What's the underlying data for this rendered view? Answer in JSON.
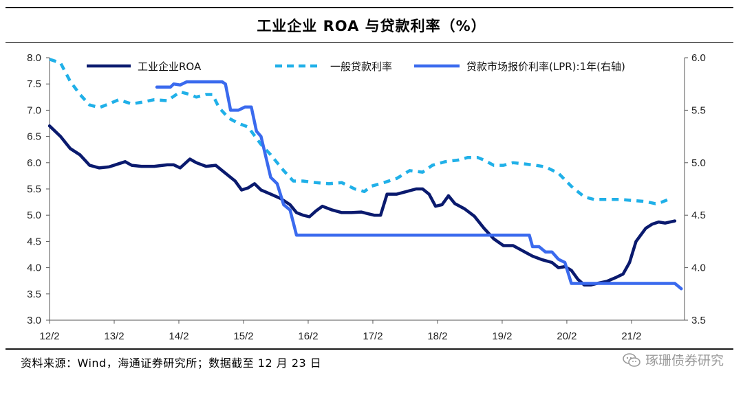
{
  "header": {
    "title": "工业企业 ROA 与贷款利率（%）"
  },
  "footer": {
    "source": "资料来源：Wind，海通证券研究所；数据截至 12 月 23 日",
    "watermark": "琢珊债券研究",
    "watermark_icon": "wechat-icon"
  },
  "chart_data": {
    "type": "line",
    "x_tick_labels": [
      "12/2",
      "13/2",
      "14/2",
      "15/2",
      "16/2",
      "17/2",
      "18/2",
      "19/2",
      "20/2",
      "21/2"
    ],
    "x_range": [
      2012.08,
      2021.9
    ],
    "left_axis": {
      "range": [
        3.0,
        8.0
      ],
      "ticks": [
        "3.0",
        "3.5",
        "4.0",
        "4.5",
        "5.0",
        "5.5",
        "6.0",
        "6.5",
        "7.0",
        "7.5",
        "8.0"
      ]
    },
    "right_axis": {
      "range": [
        3.5,
        6.0
      ],
      "ticks": [
        "3.5",
        "4.0",
        "4.5",
        "5.0",
        "5.5",
        "6.0"
      ]
    },
    "grid": false,
    "legend_position": "top",
    "series": [
      {
        "name": "工业企业ROA",
        "axis": "left",
        "color": "#0a1a6e",
        "style": "solid",
        "points": [
          [
            2012.08,
            6.7
          ],
          [
            2012.25,
            6.5
          ],
          [
            2012.4,
            6.27
          ],
          [
            2012.55,
            6.15
          ],
          [
            2012.7,
            5.95
          ],
          [
            2012.85,
            5.9
          ],
          [
            2013.0,
            5.92
          ],
          [
            2013.15,
            5.98
          ],
          [
            2013.25,
            6.02
          ],
          [
            2013.35,
            5.95
          ],
          [
            2013.5,
            5.93
          ],
          [
            2013.7,
            5.93
          ],
          [
            2013.9,
            5.96
          ],
          [
            2014.0,
            5.96
          ],
          [
            2014.1,
            5.9
          ],
          [
            2014.25,
            6.07
          ],
          [
            2014.35,
            6.0
          ],
          [
            2014.5,
            5.93
          ],
          [
            2014.65,
            5.95
          ],
          [
            2014.8,
            5.8
          ],
          [
            2014.95,
            5.65
          ],
          [
            2015.05,
            5.48
          ],
          [
            2015.15,
            5.52
          ],
          [
            2015.25,
            5.6
          ],
          [
            2015.35,
            5.48
          ],
          [
            2015.5,
            5.4
          ],
          [
            2015.65,
            5.32
          ],
          [
            2015.8,
            5.2
          ],
          [
            2015.9,
            5.05
          ],
          [
            2016.0,
            5.0
          ],
          [
            2016.1,
            4.97
          ],
          [
            2016.2,
            5.08
          ],
          [
            2016.3,
            5.17
          ],
          [
            2016.45,
            5.1
          ],
          [
            2016.6,
            5.05
          ],
          [
            2016.75,
            5.05
          ],
          [
            2016.9,
            5.06
          ],
          [
            2017.0,
            5.03
          ],
          [
            2017.1,
            5.0
          ],
          [
            2017.2,
            5.0
          ],
          [
            2017.3,
            5.4
          ],
          [
            2017.45,
            5.4
          ],
          [
            2017.6,
            5.45
          ],
          [
            2017.75,
            5.5
          ],
          [
            2017.85,
            5.5
          ],
          [
            2017.95,
            5.4
          ],
          [
            2018.05,
            5.17
          ],
          [
            2018.15,
            5.2
          ],
          [
            2018.25,
            5.37
          ],
          [
            2018.35,
            5.22
          ],
          [
            2018.5,
            5.12
          ],
          [
            2018.65,
            4.98
          ],
          [
            2018.8,
            4.75
          ],
          [
            2018.95,
            4.55
          ],
          [
            2019.1,
            4.42
          ],
          [
            2019.25,
            4.42
          ],
          [
            2019.4,
            4.32
          ],
          [
            2019.55,
            4.22
          ],
          [
            2019.7,
            4.15
          ],
          [
            2019.85,
            4.1
          ],
          [
            2019.95,
            4.0
          ],
          [
            2020.05,
            4.02
          ],
          [
            2020.15,
            3.95
          ],
          [
            2020.25,
            3.78
          ],
          [
            2020.35,
            3.67
          ],
          [
            2020.45,
            3.67
          ],
          [
            2020.55,
            3.7
          ],
          [
            2020.7,
            3.74
          ],
          [
            2020.85,
            3.82
          ],
          [
            2020.95,
            3.88
          ],
          [
            2021.05,
            4.1
          ],
          [
            2021.15,
            4.5
          ],
          [
            2021.3,
            4.75
          ],
          [
            2021.4,
            4.83
          ],
          [
            2021.5,
            4.87
          ],
          [
            2021.6,
            4.85
          ],
          [
            2021.75,
            4.89
          ]
        ]
      },
      {
        "name": "一般贷款利率",
        "axis": "left",
        "color": "#20b0e8",
        "style": "dashed",
        "points": [
          [
            2012.08,
            7.97
          ],
          [
            2012.25,
            7.9
          ],
          [
            2012.4,
            7.55
          ],
          [
            2012.55,
            7.3
          ],
          [
            2012.7,
            7.1
          ],
          [
            2012.85,
            7.05
          ],
          [
            2013.0,
            7.12
          ],
          [
            2013.15,
            7.2
          ],
          [
            2013.35,
            7.12
          ],
          [
            2013.5,
            7.15
          ],
          [
            2013.7,
            7.2
          ],
          [
            2013.9,
            7.18
          ],
          [
            2014.1,
            7.35
          ],
          [
            2014.25,
            7.3
          ],
          [
            2014.35,
            7.25
          ],
          [
            2014.5,
            7.3
          ],
          [
            2014.6,
            7.3
          ],
          [
            2014.7,
            7.05
          ],
          [
            2014.85,
            6.85
          ],
          [
            2015.0,
            6.75
          ],
          [
            2015.15,
            6.68
          ],
          [
            2015.35,
            6.35
          ],
          [
            2015.5,
            6.15
          ],
          [
            2015.7,
            5.85
          ],
          [
            2015.85,
            5.65
          ],
          [
            2016.0,
            5.65
          ],
          [
            2016.2,
            5.62
          ],
          [
            2016.4,
            5.6
          ],
          [
            2016.6,
            5.62
          ],
          [
            2016.8,
            5.5
          ],
          [
            2016.95,
            5.45
          ],
          [
            2017.05,
            5.55
          ],
          [
            2017.25,
            5.62
          ],
          [
            2017.45,
            5.7
          ],
          [
            2017.65,
            5.85
          ],
          [
            2017.85,
            5.82
          ],
          [
            2018.0,
            5.95
          ],
          [
            2018.2,
            6.02
          ],
          [
            2018.4,
            6.05
          ],
          [
            2018.55,
            6.1
          ],
          [
            2018.7,
            6.1
          ],
          [
            2018.8,
            6.05
          ],
          [
            2018.95,
            5.95
          ],
          [
            2019.1,
            5.95
          ],
          [
            2019.25,
            6.0
          ],
          [
            2019.4,
            5.98
          ],
          [
            2019.6,
            5.95
          ],
          [
            2019.75,
            5.92
          ],
          [
            2019.95,
            5.8
          ],
          [
            2020.15,
            5.55
          ],
          [
            2020.35,
            5.35
          ],
          [
            2020.5,
            5.3
          ],
          [
            2020.7,
            5.3
          ],
          [
            2020.9,
            5.3
          ],
          [
            2021.1,
            5.28
          ],
          [
            2021.3,
            5.26
          ],
          [
            2021.45,
            5.22
          ],
          [
            2021.55,
            5.25
          ],
          [
            2021.65,
            5.3
          ]
        ]
      },
      {
        "name": "贷款市场报价利率(LPR):1年(右轴)",
        "axis": "right",
        "color": "#3a6aee",
        "style": "solid",
        "points": [
          [
            2013.74,
            5.72
          ],
          [
            2013.95,
            5.72
          ],
          [
            2014.0,
            5.75
          ],
          [
            2014.1,
            5.74
          ],
          [
            2014.2,
            5.77
          ],
          [
            2014.55,
            5.77
          ],
          [
            2014.75,
            5.77
          ],
          [
            2014.8,
            5.75
          ],
          [
            2014.88,
            5.5
          ],
          [
            2015.0,
            5.5
          ],
          [
            2015.1,
            5.53
          ],
          [
            2015.2,
            5.53
          ],
          [
            2015.28,
            5.3
          ],
          [
            2015.35,
            5.25
          ],
          [
            2015.5,
            4.86
          ],
          [
            2015.6,
            4.8
          ],
          [
            2015.7,
            4.6
          ],
          [
            2015.8,
            4.55
          ],
          [
            2015.9,
            4.31
          ],
          [
            2016.0,
            4.31
          ],
          [
            2017.0,
            4.31
          ],
          [
            2018.0,
            4.31
          ],
          [
            2018.3,
            4.31
          ],
          [
            2018.5,
            4.31
          ],
          [
            2019.0,
            4.31
          ],
          [
            2019.5,
            4.31
          ],
          [
            2019.55,
            4.2
          ],
          [
            2019.65,
            4.2
          ],
          [
            2019.75,
            4.15
          ],
          [
            2019.85,
            4.15
          ],
          [
            2019.95,
            4.08
          ],
          [
            2020.05,
            4.05
          ],
          [
            2020.15,
            3.85
          ],
          [
            2020.4,
            3.85
          ],
          [
            2021.0,
            3.85
          ],
          [
            2021.5,
            3.85
          ],
          [
            2021.75,
            3.85
          ],
          [
            2021.85,
            3.8
          ]
        ]
      }
    ]
  }
}
